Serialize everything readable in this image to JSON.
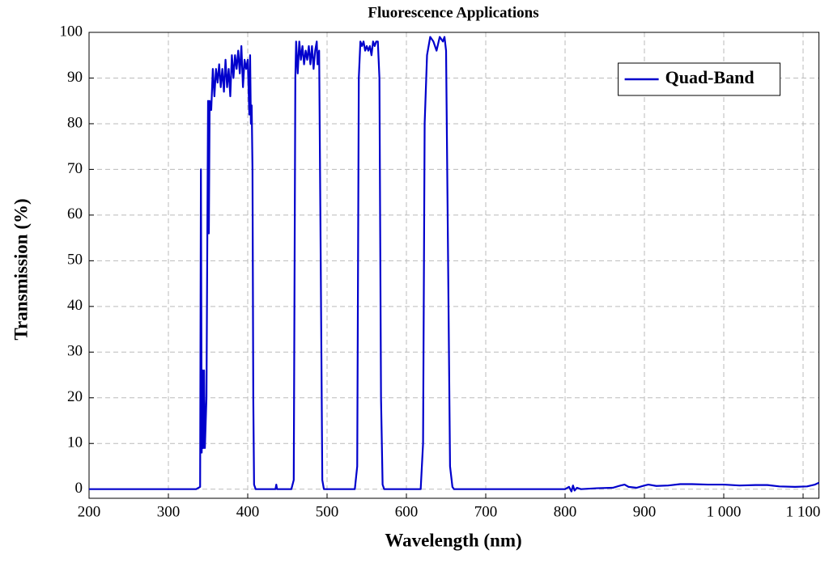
{
  "chart_data": {
    "type": "line",
    "title": "Fluorescence Applications",
    "xlabel": "Wavelength (nm)",
    "ylabel": "Transmission (%)",
    "xlim": [
      200,
      1120
    ],
    "ylim": [
      -2,
      100
    ],
    "xticks": [
      200,
      300,
      400,
      500,
      600,
      700,
      800,
      900,
      {
        "value": 1000,
        "label": "1 000"
      },
      {
        "value": 1100,
        "label": "1 100"
      }
    ],
    "yticks": [
      0,
      10,
      20,
      30,
      40,
      50,
      60,
      70,
      80,
      90,
      100
    ],
    "grid": true,
    "legend": "upper right",
    "x": [
      200,
      335,
      340,
      341,
      342,
      343,
      344,
      345,
      346,
      348,
      350,
      351,
      352,
      354,
      356,
      358,
      360,
      362,
      364,
      366,
      368,
      370,
      372,
      374,
      376,
      378,
      380,
      382,
      384,
      386,
      388,
      390,
      392,
      394,
      396,
      398,
      400,
      402,
      403,
      404,
      405,
      406,
      407,
      408,
      410,
      435,
      436,
      437,
      455,
      458,
      460,
      461,
      463,
      465,
      467,
      469,
      471,
      473,
      475,
      477,
      479,
      481,
      483,
      485,
      487,
      488,
      490,
      492,
      494,
      496,
      535,
      538,
      540,
      542,
      544,
      546,
      548,
      550,
      552,
      554,
      556,
      558,
      560,
      562,
      564,
      566,
      568,
      570,
      572,
      618,
      621,
      623,
      626,
      630,
      634,
      638,
      642,
      646,
      648,
      650,
      652,
      655,
      658,
      660,
      800,
      805,
      808,
      810,
      812,
      815,
      820,
      840,
      860,
      870,
      875,
      880,
      890,
      900,
      905,
      915,
      930,
      945,
      960,
      980,
      1000,
      1020,
      1040,
      1055,
      1070,
      1090,
      1105,
      1115,
      1120
    ],
    "series": [
      {
        "name": "Quad-Band",
        "color": "#0000cc",
        "values": [
          0,
          0,
          0.5,
          70,
          8,
          26,
          9,
          26,
          9,
          20,
          85,
          56,
          85,
          83,
          92,
          86,
          92,
          89,
          93,
          88,
          92,
          87,
          94,
          88,
          92,
          86,
          95,
          90,
          95,
          92,
          96,
          91,
          97,
          88,
          94,
          92,
          94,
          82,
          95,
          80,
          84,
          70,
          20,
          1,
          0,
          0,
          1,
          0,
          0,
          2,
          90,
          98,
          91,
          98,
          94,
          97,
          93,
          96,
          94,
          97,
          93,
          97,
          92,
          96,
          98,
          93,
          96,
          50,
          2,
          0,
          0,
          5,
          90,
          98,
          97,
          98,
          96,
          97,
          96,
          97,
          95,
          98,
          97,
          98,
          98,
          90,
          20,
          1,
          0,
          0,
          10,
          80,
          95,
          99,
          98,
          96,
          99,
          98,
          99,
          96,
          60,
          5,
          0.5,
          0,
          0,
          0.5,
          -0.5,
          0.8,
          -0.3,
          0.3,
          0,
          0.2,
          0.3,
          0.8,
          1,
          0.5,
          0.3,
          0.8,
          1,
          0.7,
          0.8,
          1.1,
          1.1,
          1,
          1,
          0.8,
          0.9,
          0.9,
          0.6,
          0.5,
          0.6,
          1,
          1.4
        ]
      }
    ]
  }
}
